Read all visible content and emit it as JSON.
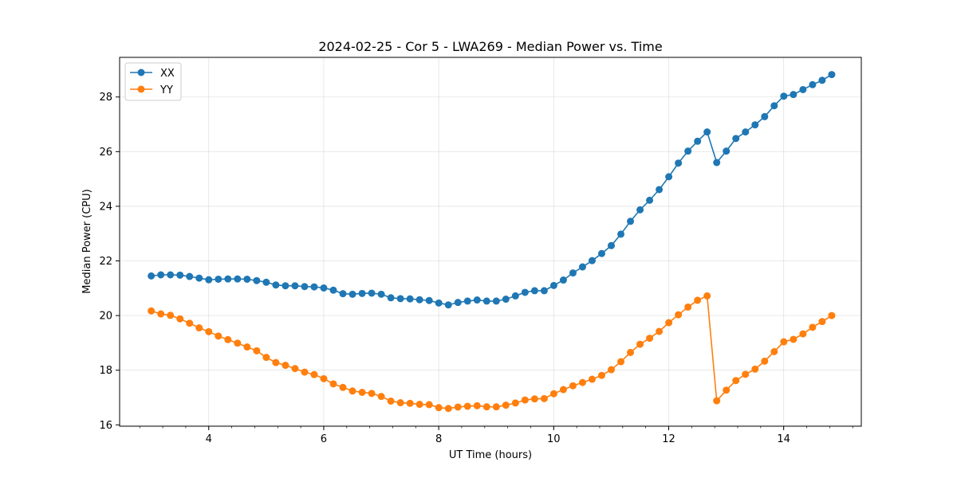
{
  "chart_data": {
    "type": "line",
    "title": "2024-02-25 - Cor 5 - LWA269 - Median Power vs. Time",
    "xlabel": "UT Time (hours)",
    "ylabel": "Median Power (CPU)",
    "xlim": [
      2.45,
      15.35
    ],
    "ylim": [
      15.95,
      29.45
    ],
    "xticks": [
      4,
      6,
      8,
      10,
      12,
      14
    ],
    "xtick_labels": [
      "4",
      "6",
      "8",
      "10",
      "12",
      "14"
    ],
    "x_minor_step": 0.4,
    "yticks": [
      16,
      18,
      20,
      22,
      24,
      26,
      28
    ],
    "ytick_labels": [
      "16",
      "18",
      "20",
      "22",
      "24",
      "26",
      "28"
    ],
    "grid": true,
    "legend_position": "top-left",
    "x_start": 3.0,
    "x_step": 0.1667,
    "series": [
      {
        "name": "XX",
        "color": "#1f77b4",
        "values": [
          21.45,
          21.49,
          21.49,
          21.48,
          21.43,
          21.37,
          21.31,
          21.33,
          21.34,
          21.34,
          21.33,
          21.28,
          21.22,
          21.12,
          21.09,
          21.09,
          21.06,
          21.05,
          21.01,
          20.93,
          20.8,
          20.78,
          20.81,
          20.82,
          20.78,
          20.65,
          20.62,
          20.61,
          20.58,
          20.55,
          20.46,
          20.39,
          20.48,
          20.53,
          20.57,
          20.53,
          20.53,
          20.6,
          20.72,
          20.85,
          20.91,
          20.91,
          21.1,
          21.3,
          21.56,
          21.78,
          22.01,
          22.27,
          22.56,
          22.98,
          23.45,
          23.87,
          24.22,
          24.61,
          25.08,
          25.58,
          26.02,
          26.38,
          26.72,
          25.6,
          26.02,
          26.48,
          26.72,
          26.98,
          27.28,
          27.68,
          28.03,
          28.09,
          28.27,
          28.45,
          28.61,
          28.82
        ]
      },
      {
        "name": "YY",
        "color": "#ff7f0e",
        "values": [
          20.17,
          20.06,
          20.01,
          19.88,
          19.72,
          19.55,
          19.41,
          19.25,
          19.12,
          18.99,
          18.85,
          18.71,
          18.47,
          18.28,
          18.18,
          18.06,
          17.93,
          17.84,
          17.69,
          17.5,
          17.37,
          17.24,
          17.19,
          17.15,
          17.04,
          16.87,
          16.81,
          16.79,
          16.75,
          16.74,
          16.63,
          16.6,
          16.65,
          16.68,
          16.7,
          16.66,
          16.66,
          16.72,
          16.8,
          16.91,
          16.95,
          16.96,
          17.14,
          17.29,
          17.43,
          17.55,
          17.67,
          17.81,
          18.02,
          18.31,
          18.65,
          18.95,
          19.17,
          19.42,
          19.74,
          20.03,
          20.31,
          20.56,
          20.72,
          16.88,
          17.27,
          17.62,
          17.85,
          18.04,
          18.33,
          18.68,
          19.04,
          19.13,
          19.33,
          19.57,
          19.78,
          20.0
        ]
      }
    ]
  }
}
